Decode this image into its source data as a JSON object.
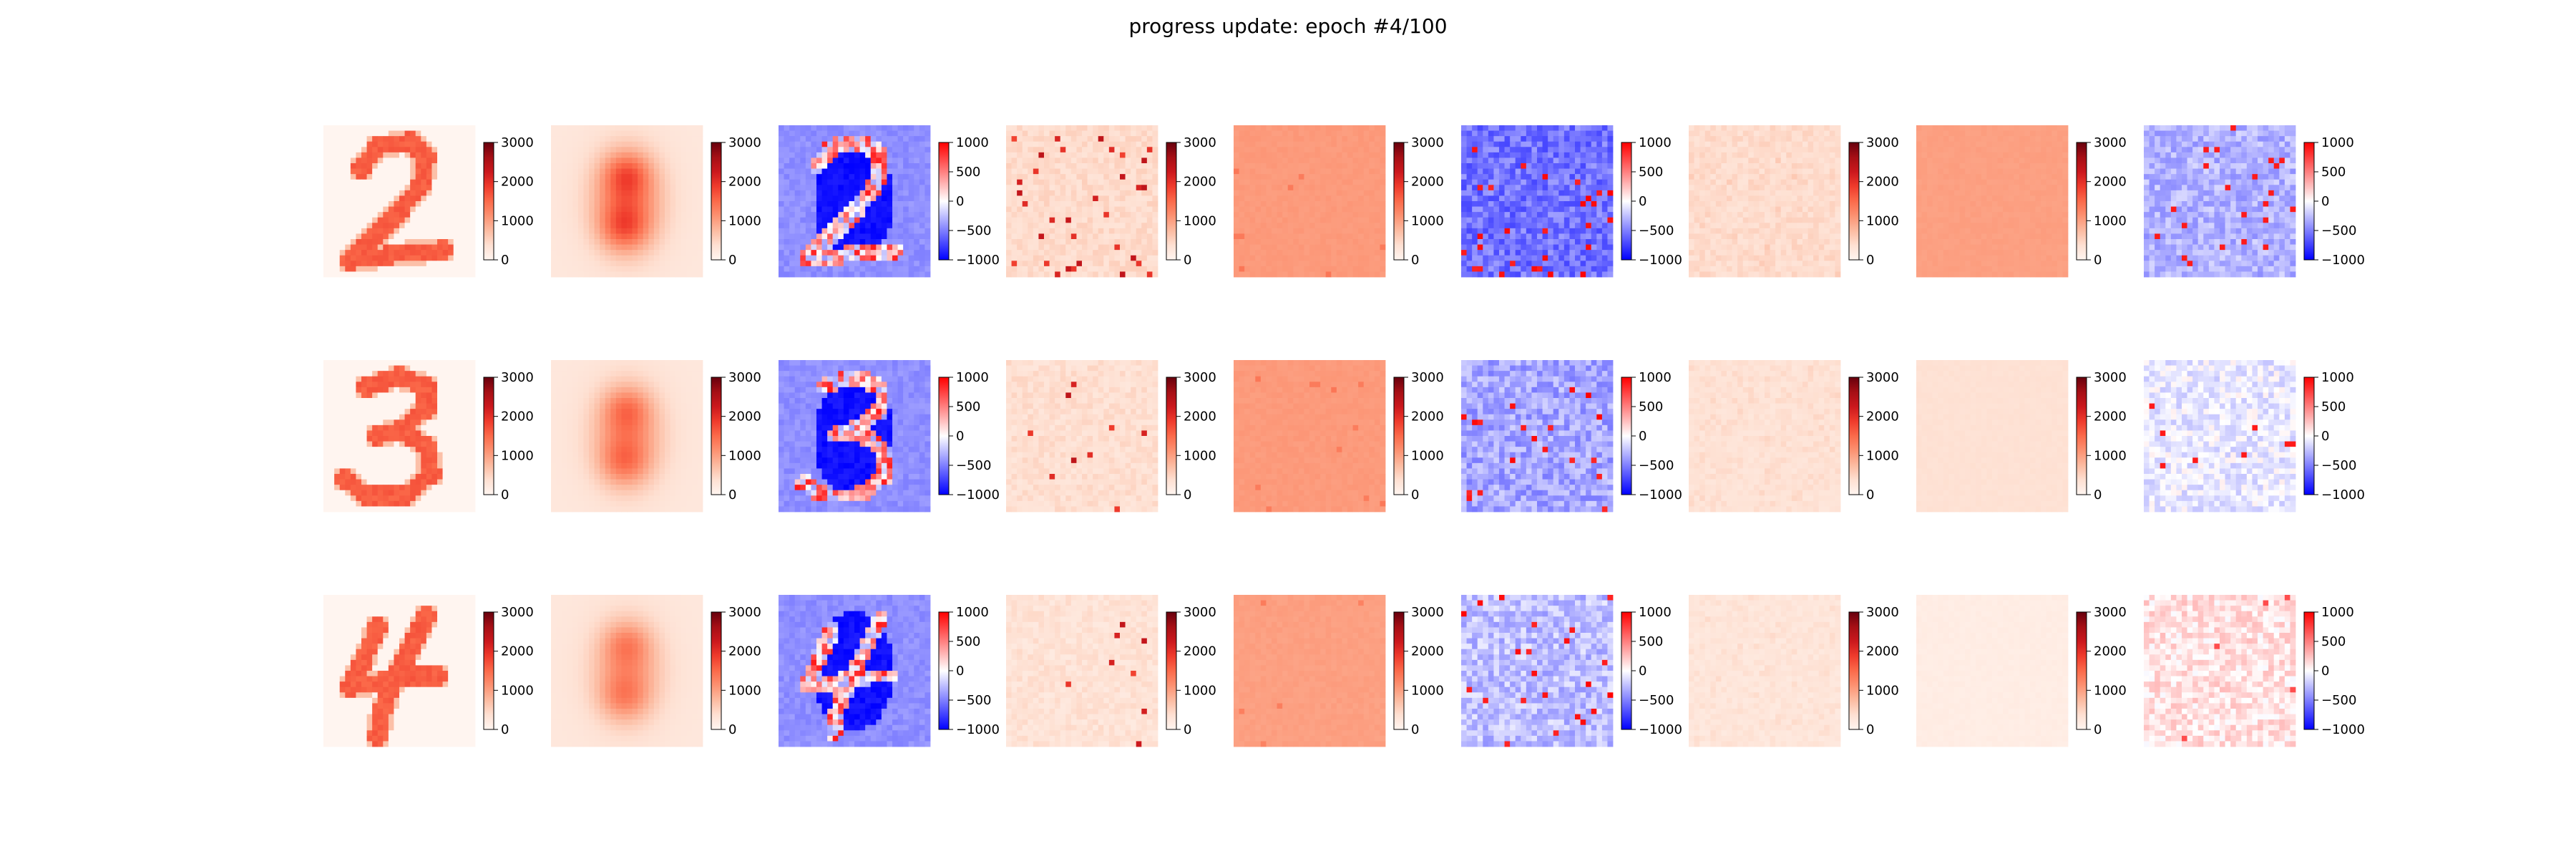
{
  "title": "progress update: epoch #4/100",
  "colors": {
    "reds_low": "#fff5f0",
    "reds_high": "#67000d",
    "bwr_low": "#0000ff",
    "bwr_mid": "#ffffff",
    "bwr_high": "#ff0000"
  },
  "chart_data": {
    "type": "heatmap",
    "grid": {
      "rows": 3,
      "cols": 9,
      "cell_resolution": 28
    },
    "colorbars": {
      "reds": {
        "range": [
          0,
          3000
        ],
        "ticks": [
          0,
          1000,
          2000,
          3000
        ],
        "tick_labels": [
          "0",
          "1000",
          "2000",
          "3000"
        ],
        "colormap": "Reds"
      },
      "bwr": {
        "range": [
          -1000,
          1000
        ],
        "ticks": [
          -1000,
          -500,
          0,
          500,
          1000
        ],
        "tick_labels": [
          "−1000",
          "−500",
          "0",
          "500",
          "1000"
        ],
        "colormap": "bwr"
      }
    },
    "rows": [
      {
        "digit": "2",
        "panels": [
          {
            "colormap": "reds",
            "content": "digit-image"
          },
          {
            "colormap": "reds",
            "content": "blurred-average"
          },
          {
            "colormap": "bwr",
            "content": "difference-map"
          },
          {
            "colormap": "reds",
            "content": "sparse-noise"
          },
          {
            "colormap": "reds",
            "content": "uniform-noise"
          },
          {
            "colormap": "bwr",
            "content": "noise-difference"
          },
          {
            "colormap": "reds",
            "content": "sparse-noise"
          },
          {
            "colormap": "reds",
            "content": "uniform-noise"
          },
          {
            "colormap": "bwr",
            "content": "noise-difference"
          }
        ]
      },
      {
        "digit": "3",
        "panels": [
          {
            "colormap": "reds",
            "content": "digit-image"
          },
          {
            "colormap": "reds",
            "content": "blurred-average"
          },
          {
            "colormap": "bwr",
            "content": "difference-map"
          },
          {
            "colormap": "reds",
            "content": "sparse-noise"
          },
          {
            "colormap": "reds",
            "content": "uniform-noise"
          },
          {
            "colormap": "bwr",
            "content": "noise-difference"
          },
          {
            "colormap": "reds",
            "content": "sparse-noise"
          },
          {
            "colormap": "reds",
            "content": "uniform-noise"
          },
          {
            "colormap": "bwr",
            "content": "noise-difference"
          }
        ]
      },
      {
        "digit": "4",
        "panels": [
          {
            "colormap": "reds",
            "content": "digit-image"
          },
          {
            "colormap": "reds",
            "content": "blurred-average"
          },
          {
            "colormap": "bwr",
            "content": "difference-map"
          },
          {
            "colormap": "reds",
            "content": "sparse-noise"
          },
          {
            "colormap": "reds",
            "content": "uniform-noise"
          },
          {
            "colormap": "bwr",
            "content": "noise-difference"
          },
          {
            "colormap": "reds",
            "content": "sparse-noise"
          },
          {
            "colormap": "reds",
            "content": "uniform-noise"
          },
          {
            "colormap": "bwr",
            "content": "noise-difference"
          }
        ]
      }
    ]
  }
}
